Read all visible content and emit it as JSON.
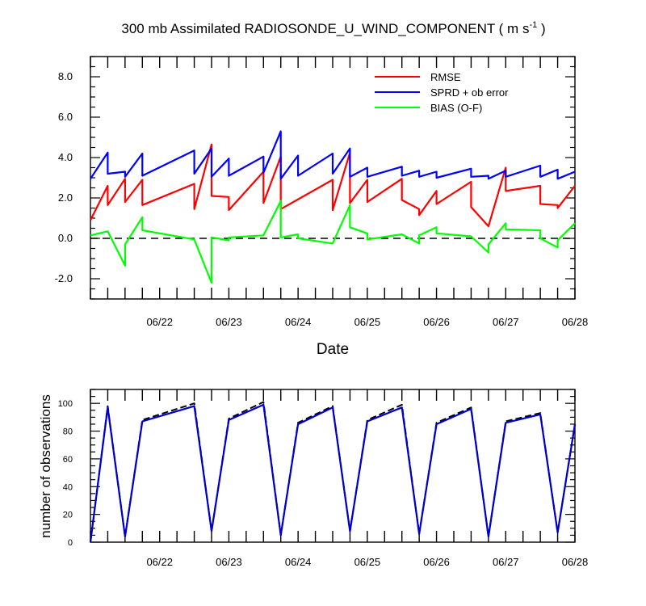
{
  "figure": {
    "title_main": "300 mb Assimilated RADIOSONDE_U_WIND_COMPONENT ( m s",
    "title_sup": "-1",
    "title_end": " )"
  },
  "chart_data": [
    {
      "type": "line",
      "title": "300 mb Assimilated RADIOSONDE_U_WIND_COMPONENT ( m s-1 )",
      "xlabel": "Date",
      "ylabel": "",
      "x_ticks": [
        "06/22",
        "06/23",
        "06/24",
        "06/25",
        "06/26",
        "06/27",
        "06/28"
      ],
      "xlim": [
        21.0,
        28.0
      ],
      "ylim": [
        -3.0,
        9.0
      ],
      "y_ticks": [
        -2.0,
        0.0,
        2.0,
        4.0,
        6.0,
        8.0
      ],
      "y_tick_labels": [
        "-2.0",
        "0.0",
        "2.0",
        "4.0",
        "6.0",
        "8.0"
      ],
      "zero_line": true,
      "grid": false,
      "legend_position": "top-right",
      "series": [
        {
          "name": "RMSE",
          "color": "#ff0000",
          "points": [
            [
              21.0,
              0.9
            ],
            [
              21.25,
              2.6
            ],
            [
              21.25,
              1.65
            ],
            [
              21.5,
              2.95
            ],
            [
              21.5,
              1.8
            ],
            [
              21.75,
              2.9
            ],
            [
              21.75,
              1.65
            ],
            [
              22.5,
              2.7
            ],
            [
              22.5,
              1.45
            ],
            [
              22.75,
              4.65
            ],
            [
              22.75,
              2.1
            ],
            [
              23.0,
              2.05
            ],
            [
              23.0,
              1.4
            ],
            [
              23.5,
              3.3
            ],
            [
              23.5,
              1.75
            ],
            [
              23.75,
              4.05
            ],
            [
              23.75,
              1.45
            ],
            [
              24.5,
              2.9
            ],
            [
              24.5,
              1.4
            ],
            [
              24.75,
              4.25
            ],
            [
              24.75,
              1.75
            ],
            [
              25.0,
              2.9
            ],
            [
              25.0,
              1.8
            ],
            [
              25.5,
              2.95
            ],
            [
              25.5,
              1.9
            ],
            [
              25.75,
              1.45
            ],
            [
              25.75,
              1.15
            ],
            [
              26.0,
              2.35
            ],
            [
              26.0,
              1.7
            ],
            [
              26.5,
              2.8
            ],
            [
              26.5,
              1.55
            ],
            [
              26.75,
              0.6
            ],
            [
              27.0,
              3.5
            ],
            [
              27.0,
              2.35
            ],
            [
              27.5,
              2.6
            ],
            [
              27.5,
              1.7
            ],
            [
              27.75,
              1.65
            ],
            [
              27.75,
              1.5
            ],
            [
              28.0,
              2.6
            ]
          ]
        },
        {
          "name": "SPRD + ob error",
          "color": "#0000ff",
          "points": [
            [
              21.0,
              2.95
            ],
            [
              21.25,
              4.25
            ],
            [
              21.25,
              3.2
            ],
            [
              21.5,
              3.3
            ],
            [
              21.5,
              3.05
            ],
            [
              21.75,
              4.2
            ],
            [
              21.75,
              3.1
            ],
            [
              22.5,
              4.35
            ],
            [
              22.5,
              3.2
            ],
            [
              22.75,
              4.45
            ],
            [
              22.75,
              3.05
            ],
            [
              23.0,
              3.95
            ],
            [
              23.0,
              3.1
            ],
            [
              23.5,
              4.05
            ],
            [
              23.5,
              3.25
            ],
            [
              23.75,
              5.3
            ],
            [
              23.75,
              2.95
            ],
            [
              24.0,
              4.1
            ],
            [
              24.0,
              3.1
            ],
            [
              24.5,
              4.2
            ],
            [
              24.5,
              3.2
            ],
            [
              24.75,
              4.45
            ],
            [
              24.75,
              3.05
            ],
            [
              25.0,
              3.5
            ],
            [
              25.0,
              3.05
            ],
            [
              25.5,
              3.55
            ],
            [
              25.5,
              3.1
            ],
            [
              25.75,
              3.35
            ],
            [
              25.75,
              3.05
            ],
            [
              26.0,
              3.3
            ],
            [
              26.0,
              3.0
            ],
            [
              26.5,
              3.45
            ],
            [
              26.5,
              3.05
            ],
            [
              26.75,
              3.1
            ],
            [
              26.75,
              2.95
            ],
            [
              27.0,
              3.35
            ],
            [
              27.0,
              3.05
            ],
            [
              27.5,
              3.6
            ],
            [
              27.5,
              3.05
            ],
            [
              27.75,
              3.4
            ],
            [
              27.75,
              2.95
            ],
            [
              28.0,
              3.3
            ]
          ]
        },
        {
          "name": "BIAS (O-F)",
          "color": "#00ff00",
          "points": [
            [
              21.0,
              0.15
            ],
            [
              21.25,
              0.35
            ],
            [
              21.5,
              -1.35
            ],
            [
              21.5,
              -0.3
            ],
            [
              21.75,
              1.05
            ],
            [
              21.75,
              0.4
            ],
            [
              22.5,
              -0.05
            ],
            [
              22.75,
              -2.2
            ],
            [
              22.75,
              0.05
            ],
            [
              23.0,
              -0.1
            ],
            [
              23.0,
              0.05
            ],
            [
              23.5,
              0.15
            ],
            [
              23.75,
              1.85
            ],
            [
              23.75,
              0.05
            ],
            [
              24.0,
              0.2
            ],
            [
              24.0,
              0.0
            ],
            [
              24.5,
              -0.25
            ],
            [
              24.75,
              1.65
            ],
            [
              24.75,
              0.55
            ],
            [
              25.0,
              0.25
            ],
            [
              25.0,
              -0.05
            ],
            [
              25.5,
              0.2
            ],
            [
              25.75,
              -0.25
            ],
            [
              25.75,
              0.15
            ],
            [
              26.0,
              0.55
            ],
            [
              26.0,
              0.25
            ],
            [
              26.5,
              0.1
            ],
            [
              26.75,
              -0.7
            ],
            [
              26.75,
              -0.3
            ],
            [
              27.0,
              0.75
            ],
            [
              27.0,
              0.45
            ],
            [
              27.5,
              0.4
            ],
            [
              27.5,
              0.0
            ],
            [
              27.75,
              -0.45
            ],
            [
              27.75,
              -0.1
            ],
            [
              28.0,
              0.75
            ]
          ]
        }
      ]
    },
    {
      "type": "line",
      "title": "",
      "xlabel": "",
      "ylabel": "number of observations",
      "x_ticks": [
        "06/22",
        "06/23",
        "06/24",
        "06/25",
        "06/26",
        "06/27",
        "06/28"
      ],
      "xlim": [
        21.0,
        28.0
      ],
      "ylim": [
        0,
        110
      ],
      "y_ticks": [
        0,
        20,
        40,
        60,
        80,
        100
      ],
      "y_tick_labels": [
        "0",
        "20",
        "40",
        "60",
        "80",
        "100"
      ],
      "grid": false,
      "series": [
        {
          "style": "dashed",
          "color": "#000000",
          "points": [
            [
              21.0,
              0
            ],
            [
              21.25,
              98
            ],
            [
              21.5,
              4
            ],
            [
              21.75,
              88
            ],
            [
              22.5,
              100
            ],
            [
              22.75,
              8
            ],
            [
              23.0,
              89
            ],
            [
              23.5,
              101
            ],
            [
              23.75,
              5
            ],
            [
              24.0,
              86
            ],
            [
              24.5,
              98
            ],
            [
              24.75,
              8
            ],
            [
              25.0,
              88
            ],
            [
              25.5,
              99
            ],
            [
              25.75,
              6
            ],
            [
              26.0,
              86
            ],
            [
              26.5,
              97
            ],
            [
              26.75,
              4
            ],
            [
              27.0,
              87
            ],
            [
              27.5,
              93
            ],
            [
              27.75,
              7
            ],
            [
              28.0,
              85
            ]
          ]
        },
        {
          "style": "solid",
          "color": "#0000cc",
          "points": [
            [
              21.0,
              0
            ],
            [
              21.25,
              97
            ],
            [
              21.5,
              4
            ],
            [
              21.75,
              87
            ],
            [
              22.5,
              98
            ],
            [
              22.75,
              8
            ],
            [
              23.0,
              88
            ],
            [
              23.5,
              99
            ],
            [
              23.75,
              5
            ],
            [
              24.0,
              85
            ],
            [
              24.5,
              97
            ],
            [
              24.75,
              8
            ],
            [
              25.0,
              87
            ],
            [
              25.5,
              97
            ],
            [
              25.75,
              6
            ],
            [
              26.0,
              85
            ],
            [
              26.5,
              96
            ],
            [
              26.75,
              4
            ],
            [
              27.0,
              86
            ],
            [
              27.5,
              92
            ],
            [
              27.75,
              7
            ],
            [
              28.0,
              85
            ]
          ]
        }
      ]
    }
  ]
}
